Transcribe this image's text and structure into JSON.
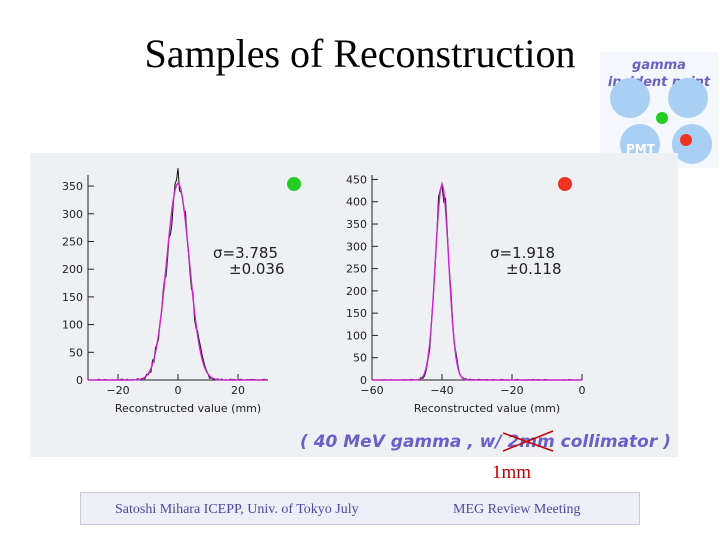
{
  "title": "Samples of Reconstruction",
  "legend": {
    "line1": "gamma",
    "line2": "incident point",
    "pmt_label": "PMT",
    "colors": {
      "pmt_disc": "#a9cff3",
      "green_marker": "#22cc22",
      "red_marker": "#ee3322"
    }
  },
  "note": {
    "prefix": "( 40 MeV gamma , w/ ",
    "struck": "2mm",
    "suffix": " collimator  )",
    "correction": "1mm"
  },
  "footer": {
    "left": "Satoshi Mihara ICEPP, Univ. of Tokyo July",
    "right": "MEG Review Meeting"
  },
  "chart_data": [
    {
      "type": "histogram",
      "marker_color": "green",
      "xlabel": "Reconstructed value (mm)",
      "ylabel": "",
      "xlim": [
        -30,
        30
      ],
      "ylim": [
        0,
        370
      ],
      "x_ticks": [
        -20,
        0,
        20
      ],
      "x_tick_labels": [
        "−20",
        "0",
        "20"
      ],
      "y_ticks": [
        0,
        50,
        100,
        150,
        200,
        250,
        300,
        350
      ],
      "fit_sigma": "σ=3.785",
      "fit_sigma_err": "±0.036",
      "peak_x": 0,
      "peak_y": 355,
      "sigma": 3.785,
      "series": [
        {
          "name": "",
          "style": "histogram",
          "color": "#111111"
        },
        {
          "name": "",
          "style": "gaussian-fit",
          "color": "#cc22cc"
        }
      ]
    },
    {
      "type": "histogram",
      "marker_color": "red",
      "xlabel": "Reconstructed value (mm)",
      "ylabel": "",
      "xlim": [
        -60,
        0
      ],
      "ylim": [
        0,
        460
      ],
      "x_ticks": [
        -60,
        -40,
        -20,
        0
      ],
      "x_tick_labels": [
        "−60",
        "−40",
        "−20",
        "0"
      ],
      "y_ticks": [
        0,
        50,
        100,
        150,
        200,
        250,
        300,
        350,
        400,
        450
      ],
      "fit_sigma": "σ=1.918",
      "fit_sigma_err": "±0.118",
      "peak_x": -40,
      "peak_y": 440,
      "sigma": 1.918,
      "series": [
        {
          "name": "",
          "style": "histogram",
          "color": "#111111"
        },
        {
          "name": "",
          "style": "gaussian-fit",
          "color": "#cc22cc"
        }
      ]
    }
  ]
}
